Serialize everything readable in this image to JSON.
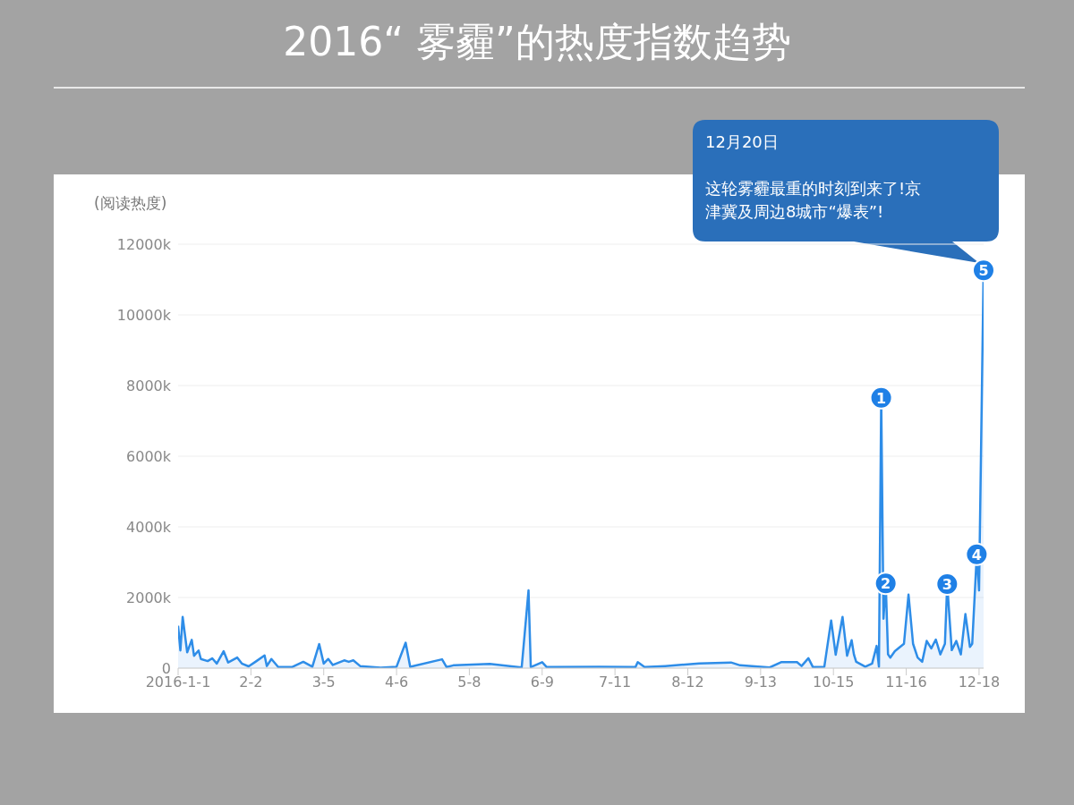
{
  "chart_data": {
    "type": "area",
    "title": "2016“ 雾霾”的热度指数趋势",
    "ylabel": "(阅读热度)",
    "x": [
      "2016-01-01",
      "2016-01-02",
      "2016-01-03",
      "2016-01-05",
      "2016-01-07",
      "2016-01-08",
      "2016-01-10",
      "2016-01-11",
      "2016-01-14",
      "2016-01-16",
      "2016-01-18",
      "2016-01-21",
      "2016-01-23",
      "2016-01-27",
      "2016-01-29",
      "2016-02-01",
      "2016-02-04",
      "2016-02-08",
      "2016-02-09",
      "2016-02-11",
      "2016-02-14",
      "2016-02-20",
      "2016-02-25",
      "2016-02-29",
      "2016-03-03",
      "2016-03-05",
      "2016-03-07",
      "2016-03-09",
      "2016-03-14",
      "2016-03-16",
      "2016-03-18",
      "2016-03-21",
      "2016-03-30",
      "2016-04-06",
      "2016-04-10",
      "2016-04-12",
      "2016-04-26",
      "2016-04-28",
      "2016-05-01",
      "2016-05-17",
      "2016-05-31",
      "2016-06-03",
      "2016-06-04",
      "2016-06-09",
      "2016-06-11",
      "2016-07-04",
      "2016-07-20",
      "2016-07-21",
      "2016-07-24",
      "2016-08-02",
      "2016-08-17",
      "2016-08-31",
      "2016-09-04",
      "2016-09-17",
      "2016-09-22",
      "2016-09-29",
      "2016-10-01",
      "2016-10-04",
      "2016-10-06",
      "2016-10-11",
      "2016-10-14",
      "2016-10-16",
      "2016-10-19",
      "2016-10-21",
      "2016-10-23",
      "2016-10-24",
      "2016-10-25",
      "2016-10-29",
      "2016-11-01",
      "2016-11-03",
      "2016-11-04",
      "2016-11-05",
      "2016-11-06",
      "2016-11-07",
      "2016-11-08",
      "2016-11-09",
      "2016-11-11",
      "2016-11-15",
      "2016-11-17",
      "2016-11-19",
      "2016-11-21",
      "2016-11-23",
      "2016-11-25",
      "2016-11-27",
      "2016-11-29",
      "2016-12-01",
      "2016-12-03",
      "2016-12-04",
      "2016-12-06",
      "2016-12-08",
      "2016-12-10",
      "2016-12-12",
      "2016-12-14",
      "2016-12-15",
      "2016-12-17",
      "2016-12-18",
      "2016-12-20"
    ],
    "series": [
      {
        "color": "#2e8de8",
        "values": [
          1200,
          500,
          1450,
          450,
          800,
          350,
          500,
          260,
          200,
          280,
          130,
          480,
          160,
          300,
          130,
          50,
          180,
          360,
          60,
          260,
          30,
          30,
          180,
          40,
          680,
          130,
          260,
          90,
          220,
          180,
          220,
          60,
          10,
          40,
          720,
          40,
          250,
          30,
          80,
          120,
          20,
          2200,
          30,
          170,
          30,
          40,
          30,
          170,
          30,
          60,
          130,
          160,
          80,
          20,
          170,
          170,
          60,
          280,
          30,
          40,
          1350,
          380,
          1450,
          350,
          790,
          390,
          180,
          40,
          130,
          630,
          40,
          7650,
          1400,
          2400,
          390,
          300,
          480,
          690,
          2080,
          690,
          300,
          180,
          770,
          560,
          810,
          390,
          690,
          2380,
          510,
          770,
          390,
          1530,
          600,
          690,
          3220,
          2200,
          11260
        ]
      }
    ],
    "xlim": [
      "2016-01-01",
      "2016-12-20"
    ],
    "xticks": [
      {
        "value": "2016-01-01",
        "label": "2016-1-1"
      },
      {
        "value": "2016-02-02",
        "label": "2-2"
      },
      {
        "value": "2016-03-05",
        "label": "3-5"
      },
      {
        "value": "2016-04-06",
        "label": "4-6"
      },
      {
        "value": "2016-05-08",
        "label": "5-8"
      },
      {
        "value": "2016-06-09",
        "label": "6-9"
      },
      {
        "value": "2016-07-11",
        "label": "7-11"
      },
      {
        "value": "2016-08-12",
        "label": "8-12"
      },
      {
        "value": "2016-09-13",
        "label": "9-13"
      },
      {
        "value": "2016-10-15",
        "label": "10-15"
      },
      {
        "value": "2016-11-16",
        "label": "11-16"
      },
      {
        "value": "2016-12-18",
        "label": "12-18"
      }
    ],
    "ylim": [
      0,
      12000
    ],
    "yticks": [
      0,
      {
        "value": 2000,
        "label": "2000k"
      },
      {
        "value": 4000,
        "label": "4000k"
      },
      {
        "value": 6000,
        "label": "6000k"
      },
      {
        "value": 8000,
        "label": "8000k"
      },
      {
        "value": 10000,
        "label": "10000k"
      },
      {
        "value": 12000,
        "label": "12000k"
      }
    ],
    "grid": "y",
    "legend": false,
    "marker": "none",
    "annotations": [
      {
        "text": "1",
        "x": "2016-11-05",
        "y": 7650
      },
      {
        "text": "2",
        "x": "2016-11-07",
        "y": 2400
      },
      {
        "text": "3",
        "x": "2016-12-04",
        "y": 2380
      },
      {
        "text": "4",
        "x": "2016-12-17",
        "y": 3220
      },
      {
        "text": "5",
        "x": "2016-12-20",
        "y": 11260
      },
      "12月20日",
      "这轮雾霾最重的时刻到来了!京津冀及周边8城市“爆表”!"
    ]
  }
}
